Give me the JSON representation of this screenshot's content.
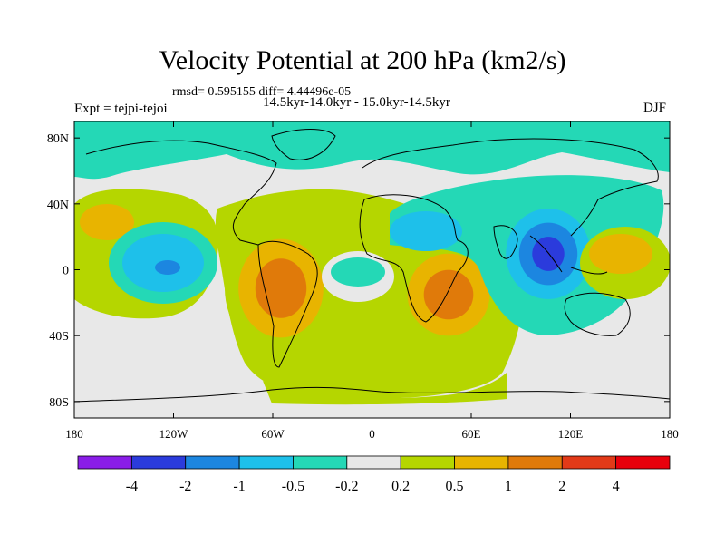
{
  "chart_data": {
    "type": "heatmap",
    "title": "Velocity Potential at 200 hPa (km2/s)",
    "stats": "rmsd= 0.595155 diff= 4.44496e-05",
    "subtitle": "14.5kyr-14.0kyr - 15.0kyr-14.5kyr",
    "experiment": "Expt = tejpi-tejoi",
    "season": "DJF",
    "x_ticks": [
      "180",
      "120W",
      "60W",
      "0",
      "60E",
      "120E",
      "180"
    ],
    "y_ticks": [
      "80N",
      "40N",
      "0",
      "40S",
      "80S"
    ],
    "xlim": [
      -180,
      180
    ],
    "ylim": [
      -90,
      90
    ],
    "levels": [
      "-4",
      "-2",
      "-1",
      "-0.5",
      "-0.2",
      "0.2",
      "0.5",
      "1",
      "2",
      "4"
    ],
    "colors": [
      "#8a1de8",
      "#2b3bdc",
      "#1c86e0",
      "#1ec0ea",
      "#24d8b6",
      "#e8e8e8",
      "#b5d600",
      "#e8b400",
      "#e07a0a",
      "#e23a18",
      "#e8000c"
    ],
    "anomaly_centers": [
      {
        "lon": -155,
        "lat": 22,
        "value": 0.5
      },
      {
        "lon": -125,
        "lat": 0,
        "value": -1
      },
      {
        "lon": -52,
        "lat": -8,
        "value": 2
      },
      {
        "lon": -8,
        "lat": 0,
        "value": -0.2
      },
      {
        "lon": 45,
        "lat": -8,
        "value": 2
      },
      {
        "lon": 100,
        "lat": 5,
        "value": -2
      },
      {
        "lon": 148,
        "lat": 8,
        "value": 1
      },
      {
        "lon": 20,
        "lat": 80,
        "value": -0.5
      }
    ]
  }
}
